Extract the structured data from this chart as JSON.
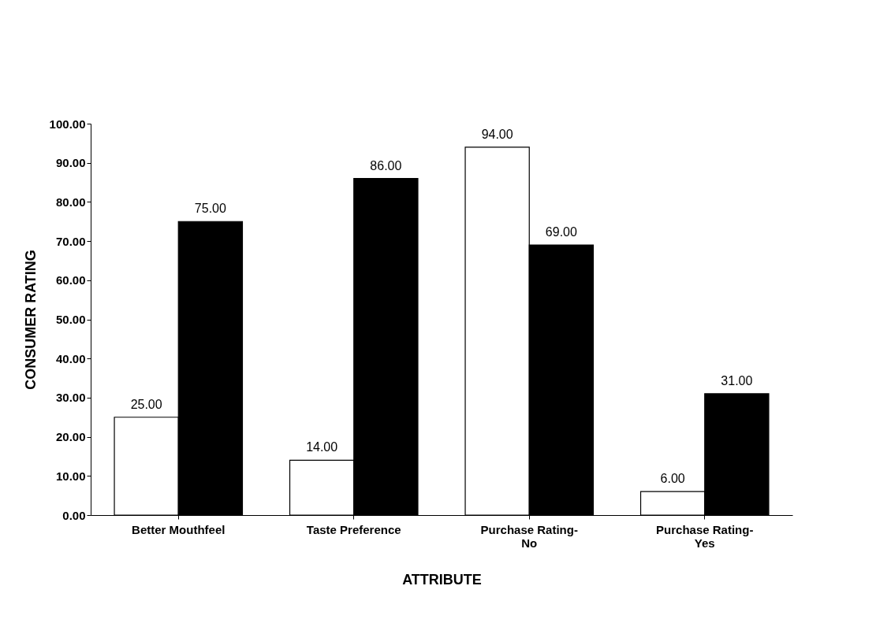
{
  "chart_data": {
    "type": "bar",
    "xlabel": "ATTRIBUTE",
    "ylabel": "CONSUMER RATING",
    "categories": [
      "Better Mouthfeel",
      "Taste Preference",
      "Purchase Rating-No",
      "Purchase Rating-Yes"
    ],
    "series": [
      {
        "color": "#ffffff",
        "values": [
          25,
          14,
          94,
          6
        ],
        "value_labels": [
          "25.00",
          "14.00",
          "94.00",
          "6.00"
        ]
      },
      {
        "color": "#000000",
        "values": [
          75,
          86,
          69,
          31
        ],
        "value_labels": [
          "75.00",
          "86.00",
          "69.00",
          "31.00"
        ]
      }
    ],
    "ylim": [
      0,
      100
    ],
    "yticks": [
      {
        "value": 0,
        "label": "0.00"
      },
      {
        "value": 10,
        "label": "10.00"
      },
      {
        "value": 20,
        "label": "20.00"
      },
      {
        "value": 30,
        "label": "30.00"
      },
      {
        "value": 40,
        "label": "40.00"
      },
      {
        "value": 50,
        "label": "50.00"
      },
      {
        "value": 60,
        "label": "60.00"
      },
      {
        "value": 70,
        "label": "70.00"
      },
      {
        "value": 80,
        "label": "80.00"
      },
      {
        "value": 90,
        "label": "90.00"
      },
      {
        "value": 100,
        "label": "100.00"
      }
    ],
    "grid": false,
    "legend": false
  }
}
